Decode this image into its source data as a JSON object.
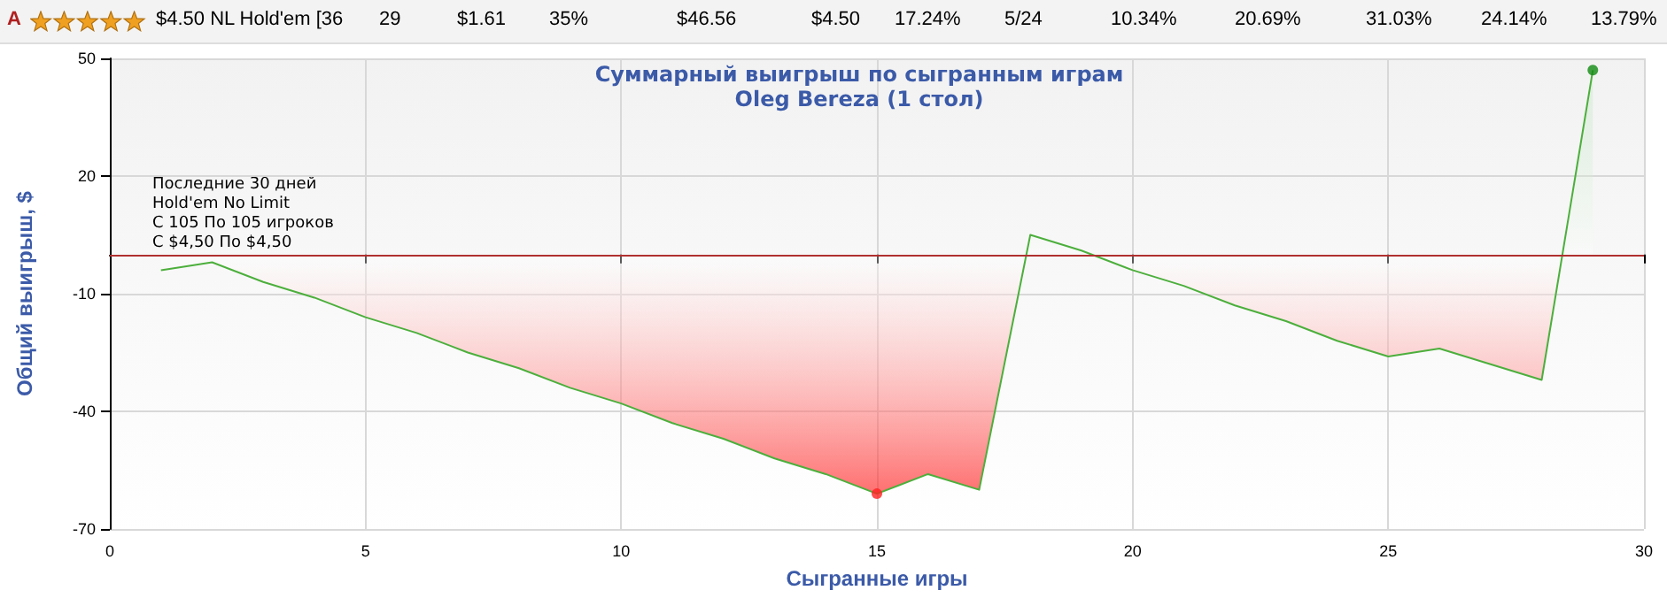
{
  "chart_data": {
    "type": "area",
    "title": "Суммарный выигрыш по сыгранным играм",
    "subtitle": "Oleg Bereza (1 стол)",
    "xlabel": "Сыгранные игры",
    "ylabel": "Общий выигрыш, $",
    "annotations": [
      "Последние 30 дней\nHold'em No Limit\nС 105 По 105 игроков\nС $4,50 По $4,50",
      "A",
      "$4.50 NL Hold'em [36",
      "29",
      "$1.61",
      "35%",
      "$46.56",
      "$4.50",
      "17.24%",
      "5/24",
      "10.34%",
      "20.69%",
      "31.03%",
      "24.14%",
      "13.79%"
    ],
    "x": [
      1,
      2,
      3,
      4,
      5,
      6,
      7,
      8,
      9,
      10,
      11,
      12,
      13,
      14,
      15,
      16,
      17,
      18,
      19,
      20,
      21,
      22,
      23,
      24,
      25,
      26,
      27,
      28,
      29
    ],
    "series": [
      {
        "color": "#4caf3c",
        "values": [
          -4,
          -2,
          -7,
          -11,
          -16,
          -20,
          -25,
          -29,
          -34,
          -38,
          -43,
          -47,
          -52,
          -56,
          -61,
          -56,
          -60,
          5,
          1,
          -4,
          -8,
          -13,
          -17,
          -22,
          -26,
          -24,
          -28,
          -32,
          47
        ]
      },
      {
        "type": "scatter",
        "color": "#ff2020",
        "x": [
          15
        ],
        "values": [
          -61
        ]
      },
      {
        "type": "scatter",
        "color": "#108a10",
        "x": [
          29
        ],
        "values": [
          47
        ]
      }
    ],
    "xlim": [
      0,
      30
    ],
    "xticks": [
      0,
      5,
      10,
      15,
      20,
      25,
      30
    ],
    "ylim": [
      -70,
      50
    ],
    "yticks": [
      -70,
      -40,
      -10,
      20,
      50
    ],
    "ref_lines": [
      {
        "axis": "y",
        "value": 0,
        "color": "#b03030"
      }
    ],
    "grid": true
  }
}
